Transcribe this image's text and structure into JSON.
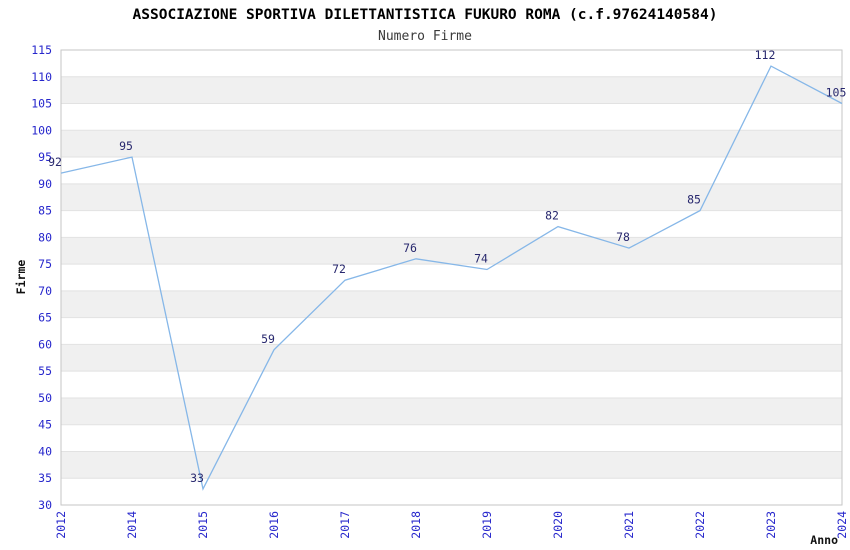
{
  "chart_data": {
    "type": "line",
    "title": "ASSOCIAZIONE SPORTIVA DILETTANTISTICA FUKURO ROMA (c.f.97624140584)",
    "subtitle": "Numero Firme",
    "xlabel": "Anno",
    "ylabel": "Firme",
    "categories": [
      "2012",
      "2014",
      "2015",
      "2016",
      "2017",
      "2018",
      "2019",
      "2020",
      "2021",
      "2022",
      "2023",
      "2024"
    ],
    "values": [
      92,
      95,
      33,
      59,
      72,
      76,
      74,
      82,
      78,
      85,
      112,
      105
    ],
    "ylim": [
      30,
      115
    ],
    "ytick_step": 5,
    "grid": true,
    "plot_bands_alternating": true,
    "legend_position": "none",
    "colors": {
      "line": "#86b7e8",
      "tick_label": "#2727cc",
      "data_label": "#28286e",
      "band": "#f0f0f0",
      "gridline": "#e2e2e2",
      "plot_border": "#c6c6c6",
      "title": "#000000",
      "subtitle": "#3a3a3a",
      "axis_title": "#111111",
      "background": "#ffffff"
    }
  }
}
